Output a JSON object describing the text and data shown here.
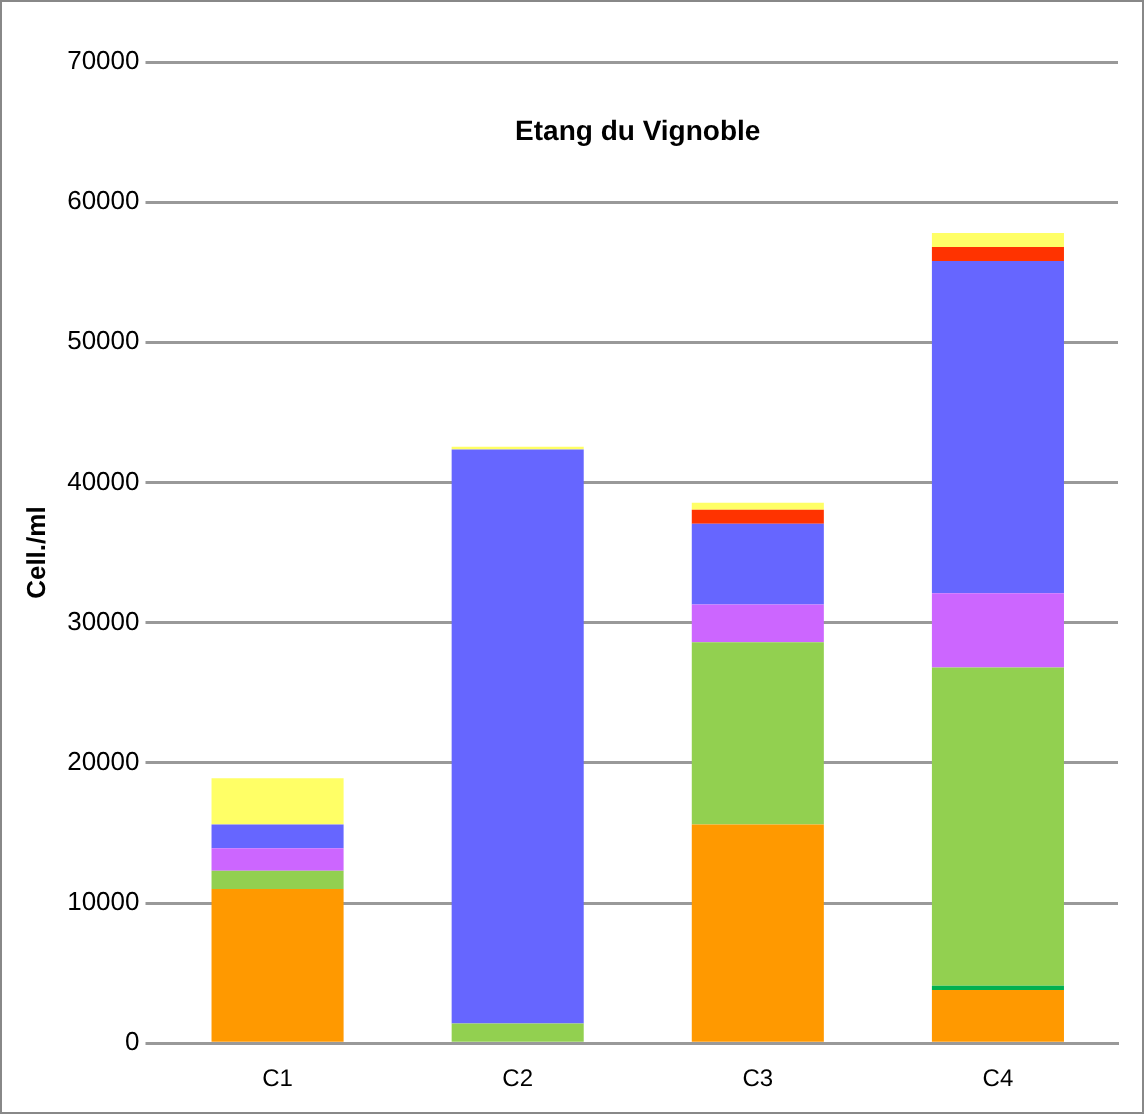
{
  "chart_data": {
    "type": "bar",
    "stacked": true,
    "title": "Etang du Vignoble",
    "ylabel": "Cell./ml",
    "categories": [
      "C1",
      "C2",
      "C3",
      "C4"
    ],
    "series": [
      {
        "color": "#ff9900",
        "values": [
          11000,
          0,
          15600,
          3800
        ]
      },
      {
        "color": "#00b050",
        "values": [
          0,
          0,
          0,
          300
        ]
      },
      {
        "color": "#92d050",
        "values": [
          1300,
          1400,
          13000,
          22700
        ]
      },
      {
        "color": "#cc66ff",
        "values": [
          1600,
          0,
          2700,
          5300
        ]
      },
      {
        "color": "#6666ff",
        "values": [
          1700,
          40950,
          5750,
          23700
        ]
      },
      {
        "color": "#ff3300",
        "values": [
          0,
          0,
          1000,
          1000
        ]
      },
      {
        "color": "#ffff66",
        "values": [
          3300,
          200,
          500,
          1000
        ]
      }
    ],
    "ylim": [
      0,
      70000
    ],
    "yticks": [
      0,
      10000,
      20000,
      30000,
      40000,
      50000,
      60000,
      70000
    ],
    "grid": "y",
    "legend": false
  }
}
